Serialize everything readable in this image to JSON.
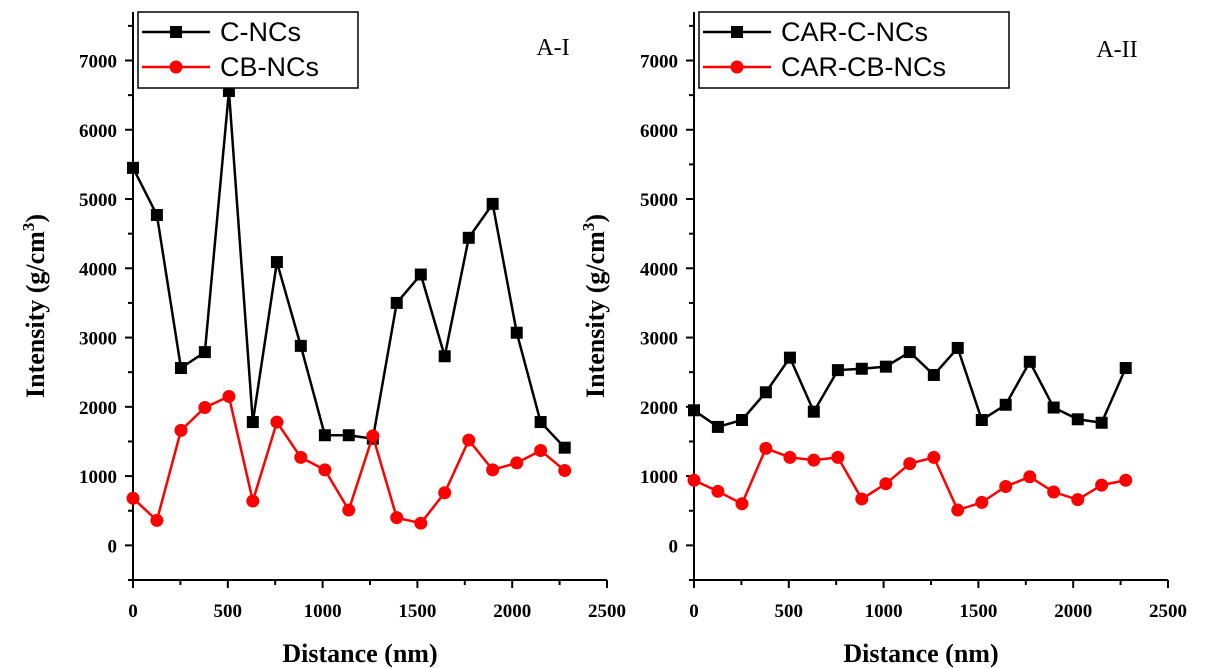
{
  "chart_data": [
    {
      "type": "line",
      "panel_label": "A-I",
      "xlabel": "Distance (nm)",
      "ylabel": "Intensity (g/cm",
      "ylabel_sup": "3",
      "ylabel_close": ")",
      "xlim": [
        0,
        2500
      ],
      "ylim": [
        -500,
        7700
      ],
      "xticks": [
        0,
        500,
        1000,
        1500,
        2000,
        2500
      ],
      "xtick_labels": [
        "0",
        "500",
        "1000",
        "1500",
        "2000",
        "2500"
      ],
      "yticks": [
        0,
        1000,
        2000,
        3000,
        4000,
        5000,
        6000,
        7000
      ],
      "ytick_labels": [
        "0",
        "1000",
        "2000",
        "3000",
        "4000",
        "5000",
        "6000",
        "7000"
      ],
      "grid": false,
      "legend_position": "top-left",
      "x": [
        0,
        126,
        253,
        379,
        506,
        632,
        759,
        885,
        1012,
        1138,
        1265,
        1391,
        1518,
        1644,
        1771,
        1897,
        2024,
        2150,
        2277
      ],
      "series": [
        {
          "name": "C-NCs",
          "color": "#000000",
          "marker": "square",
          "values": [
            5450,
            4770,
            2560,
            2790,
            6560,
            1780,
            4090,
            2880,
            1590,
            1590,
            1540,
            3500,
            3910,
            2730,
            4440,
            4930,
            3070,
            1780,
            1410
          ]
        },
        {
          "name": "CB-NCs",
          "color": "#ff0000",
          "marker": "circle",
          "values": [
            680,
            360,
            1660,
            1990,
            2150,
            640,
            1780,
            1270,
            1090,
            510,
            1580,
            400,
            320,
            760,
            1520,
            1090,
            1190,
            1370,
            1080
          ]
        }
      ]
    },
    {
      "type": "line",
      "panel_label": "A-II",
      "xlabel": "Distance (nm)",
      "ylabel": "Intensity (g/cm",
      "ylabel_sup": "3",
      "ylabel_close": ")",
      "xlim": [
        0,
        2500
      ],
      "ylim": [
        -500,
        7700
      ],
      "xticks": [
        0,
        500,
        1000,
        1500,
        2000,
        2500
      ],
      "xtick_labels": [
        "0",
        "500",
        "1000",
        "1500",
        "2000",
        "2500"
      ],
      "yticks": [
        0,
        1000,
        2000,
        3000,
        4000,
        5000,
        6000,
        7000
      ],
      "ytick_labels": [
        "0",
        "1000",
        "2000",
        "3000",
        "4000",
        "5000",
        "6000",
        "7000"
      ],
      "grid": false,
      "legend_position": "top-left",
      "x": [
        0,
        126,
        253,
        379,
        506,
        632,
        759,
        885,
        1012,
        1138,
        1265,
        1391,
        1518,
        1644,
        1771,
        1897,
        2024,
        2150,
        2277
      ],
      "series": [
        {
          "name": "CAR-C-NCs",
          "color": "#000000",
          "marker": "square",
          "values": [
            1950,
            1710,
            1810,
            2210,
            2710,
            1930,
            2530,
            2550,
            2580,
            2790,
            2460,
            2850,
            1810,
            2030,
            2650,
            1990,
            1820,
            1770,
            2560
          ]
        },
        {
          "name": "CAR-CB-NCs",
          "color": "#ff0000",
          "marker": "circle",
          "values": [
            940,
            780,
            600,
            1400,
            1270,
            1230,
            1270,
            670,
            890,
            1180,
            1270,
            510,
            620,
            850,
            990,
            770,
            660,
            870,
            940
          ]
        }
      ]
    }
  ]
}
